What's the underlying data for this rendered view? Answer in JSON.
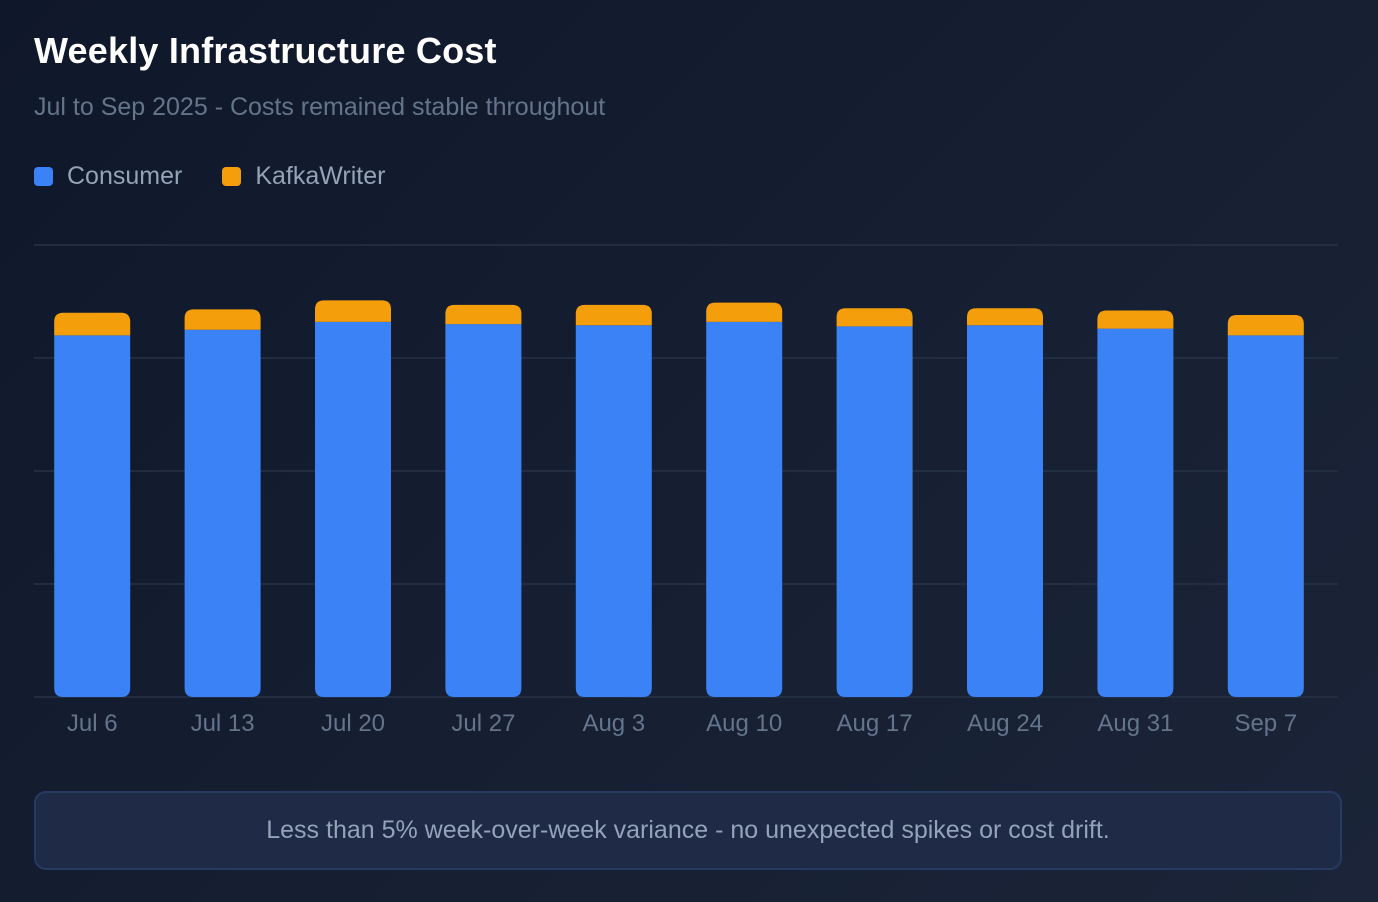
{
  "chart_data": {
    "type": "bar",
    "stacked": true,
    "title": "Weekly Infrastructure Cost",
    "subtitle": "Jul to Sep 2025 - Costs remained stable throughout",
    "categories": [
      "Jul 6",
      "Jul 13",
      "Jul 20",
      "Jul 27",
      "Aug 3",
      "Aug 10",
      "Aug 17",
      "Aug 24",
      "Aug 31",
      "Sep 7"
    ],
    "series": [
      {
        "name": "Consumer",
        "color": "#3b82f6",
        "values": [
          3.2,
          3.25,
          3.32,
          3.3,
          3.29,
          3.32,
          3.28,
          3.29,
          3.26,
          3.2
        ]
      },
      {
        "name": "KafkaWriter",
        "color": "#f59e0b",
        "values": [
          0.2,
          0.18,
          0.19,
          0.17,
          0.18,
          0.17,
          0.16,
          0.15,
          0.16,
          0.18
        ]
      }
    ],
    "ylim": [
      0,
      4
    ],
    "gridlines": [
      0,
      1,
      2,
      3,
      4
    ],
    "grid": true,
    "legend": "top-left",
    "xlabel": "",
    "ylabel": ""
  },
  "note": "Less than 5% week-over-week variance - no unexpected spikes or cost drift.",
  "colors": {
    "grid": "#263247",
    "tick": "#64748b"
  }
}
